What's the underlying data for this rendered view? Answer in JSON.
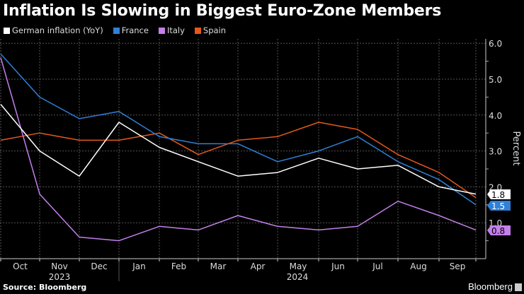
{
  "chart_data": {
    "type": "line",
    "title": "Inflation Is Slowing in Biggest Euro-Zone Members",
    "ylabel": "Percent",
    "ylim": [
      0,
      6
    ],
    "yticks": [
      "1.0",
      "2.0",
      "3.0",
      "4.0",
      "5.0",
      "6.0"
    ],
    "x_month_labels": [
      "Oct",
      "Nov",
      "Dec",
      "Jan",
      "Feb",
      "Mar",
      "Apr",
      "May",
      "Jun",
      "Jul",
      "Aug",
      "Sep"
    ],
    "x_year_labels": [
      "2023",
      "2024"
    ],
    "grid": true,
    "legend_position": "top-left",
    "series": [
      {
        "name": "German inflation (YoY)",
        "color": "#ffffff",
        "values": [
          4.3,
          3.0,
          2.3,
          3.8,
          3.1,
          2.7,
          2.3,
          2.4,
          2.8,
          2.5,
          2.6,
          2.0,
          1.8
        ],
        "last_label": "1.8"
      },
      {
        "name": "France",
        "color": "#2f80d8",
        "values": [
          5.7,
          4.5,
          3.9,
          4.1,
          3.4,
          3.2,
          3.2,
          2.7,
          3.0,
          3.4,
          2.7,
          2.2,
          1.5
        ],
        "last_label": "1.5"
      },
      {
        "name": "Italy",
        "color": "#c47fea",
        "values": [
          5.6,
          1.8,
          0.6,
          0.5,
          0.9,
          0.8,
          1.2,
          0.9,
          0.8,
          0.9,
          1.6,
          1.2,
          0.8
        ],
        "last_label": "0.8"
      },
      {
        "name": "Spain",
        "color": "#e5581c",
        "values": [
          3.3,
          3.5,
          3.3,
          3.3,
          3.5,
          2.9,
          3.3,
          3.4,
          3.8,
          3.6,
          2.9,
          2.4,
          1.7
        ]
      }
    ]
  },
  "footer": {
    "source": "Source: Bloomberg",
    "brand": "Bloomberg"
  }
}
